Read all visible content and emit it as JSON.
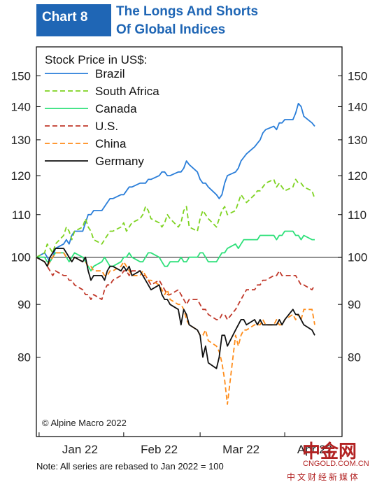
{
  "header": {
    "chart_number": "Chart 8",
    "title_line1": "The Longs And Shorts",
    "title_line2": "Of Global Indices"
  },
  "source_note": "© Alpine Macro 2022",
  "footnote": "Note: All series are rebased to Jan 2022 = 100",
  "watermark": {
    "brand_cn": "中金网",
    "brand_en": "CNGOLD.COM.CN",
    "tagline_cn": "中文财经新媒体"
  },
  "colors": {
    "brand_blue": "#1f66b5",
    "watermark_red": "#b22222"
  },
  "chart_data": {
    "type": "line",
    "title": "The Longs And Shorts Of Global Indices",
    "ylabel": "Stock Price in US$:",
    "y_scale": "log",
    "ylim": [
      67,
      160
    ],
    "y_ticks": [
      80,
      90,
      100,
      110,
      120,
      130,
      140,
      150
    ],
    "y_tick_labels": [
      "80",
      "90",
      "100",
      "110",
      "120",
      "130",
      "140",
      "150"
    ],
    "x_tick_labels": [
      "Jan 22",
      "Feb 22",
      "Mar 22",
      "Apr 22"
    ],
    "x_tick_dates": [
      "2022-01-01",
      "2022-02-01",
      "2022-03-01",
      "2022-04-01"
    ],
    "x_range": [
      "2021-12-31",
      "2022-04-22"
    ],
    "grid": false,
    "reference_line": 100,
    "legend_placement": "top-left",
    "x": [
      "2021-12-31",
      "2022-01-03",
      "2022-01-04",
      "2022-01-05",
      "2022-01-06",
      "2022-01-07",
      "2022-01-10",
      "2022-01-11",
      "2022-01-12",
      "2022-01-13",
      "2022-01-14",
      "2022-01-17",
      "2022-01-18",
      "2022-01-19",
      "2022-01-20",
      "2022-01-21",
      "2022-01-24",
      "2022-01-25",
      "2022-01-26",
      "2022-01-27",
      "2022-01-28",
      "2022-01-31",
      "2022-02-01",
      "2022-02-02",
      "2022-02-03",
      "2022-02-04",
      "2022-02-07",
      "2022-02-08",
      "2022-02-09",
      "2022-02-10",
      "2022-02-11",
      "2022-02-14",
      "2022-02-15",
      "2022-02-16",
      "2022-02-17",
      "2022-02-18",
      "2022-02-21",
      "2022-02-22",
      "2022-02-23",
      "2022-02-24",
      "2022-02-25",
      "2022-02-28",
      "2022-03-01",
      "2022-03-02",
      "2022-03-03",
      "2022-03-04",
      "2022-03-07",
      "2022-03-08",
      "2022-03-09",
      "2022-03-10",
      "2022-03-11",
      "2022-03-14",
      "2022-03-15",
      "2022-03-16",
      "2022-03-17",
      "2022-03-18",
      "2022-03-21",
      "2022-03-22",
      "2022-03-23",
      "2022-03-24",
      "2022-03-25",
      "2022-03-28",
      "2022-03-29",
      "2022-03-30",
      "2022-03-31",
      "2022-04-01",
      "2022-04-04",
      "2022-04-05",
      "2022-04-06",
      "2022-04-07",
      "2022-04-08",
      "2022-04-11",
      "2022-04-12"
    ],
    "series": [
      {
        "name": "Brazil",
        "color": "#2a7ed9",
        "dash": "solid",
        "values": [
          100,
          101,
          100,
          99,
          100,
          102,
          103,
          104,
          103,
          105,
          106,
          106,
          108,
          110,
          110,
          111,
          111,
          112,
          113,
          114,
          114,
          115,
          115,
          116,
          117,
          117,
          118,
          118,
          118,
          119,
          119,
          120,
          121,
          121,
          120,
          120,
          121,
          121,
          122,
          124,
          123,
          121,
          119,
          118,
          118,
          117,
          115,
          114,
          115,
          118,
          120,
          121,
          122,
          124,
          125,
          126,
          128,
          129,
          130,
          132,
          133,
          134,
          133,
          135,
          135,
          136,
          136,
          138,
          141,
          140,
          137,
          135,
          134
        ]
      },
      {
        "name": "South Africa",
        "color": "#7ed321",
        "dash": "dashed",
        "values": [
          100,
          101,
          103,
          102,
          101,
          103,
          105,
          107,
          106,
          104,
          106,
          107,
          109,
          107,
          106,
          104,
          103,
          104,
          105,
          106,
          106,
          107,
          108,
          106,
          107,
          108,
          109,
          110,
          112,
          111,
          109,
          108,
          107,
          108,
          110,
          109,
          107,
          108,
          111,
          112,
          107,
          106,
          109,
          111,
          110,
          109,
          107,
          109,
          111,
          112,
          110,
          111,
          113,
          115,
          114,
          113,
          115,
          116,
          116,
          117,
          118,
          119,
          117,
          118,
          117,
          116,
          117,
          119,
          118,
          118,
          117,
          116,
          114
        ]
      },
      {
        "name": "Canada",
        "color": "#2ee07a",
        "dash": "solid",
        "values": [
          100,
          100,
          99,
          99,
          100,
          101,
          101,
          100,
          99,
          100,
          101,
          100,
          99,
          98,
          97,
          98,
          99,
          100,
          99,
          98,
          98,
          99,
          100,
          100,
          101,
          100,
          99,
          99,
          100,
          101,
          101,
          100,
          99,
          98,
          98,
          99,
          99,
          100,
          99,
          99,
          100,
          100,
          101,
          101,
          100,
          99,
          99,
          100,
          101,
          101,
          102,
          103,
          102,
          103,
          104,
          104,
          104,
          104,
          105,
          105,
          105,
          105,
          104,
          105,
          105,
          106,
          106,
          105,
          105,
          104,
          105,
          104,
          104
        ]
      },
      {
        "name": "U.S.",
        "color": "#c0392b",
        "dash": "dashed",
        "values": [
          100,
          99,
          98,
          97,
          96,
          97,
          96,
          96,
          95,
          95,
          94,
          93,
          92,
          92,
          91,
          92,
          91,
          93,
          94,
          94,
          95,
          96,
          97,
          97,
          96,
          97,
          97,
          96,
          96,
          95,
          94,
          95,
          94,
          93,
          92,
          92,
          93,
          92,
          91,
          90,
          91,
          91,
          90,
          89,
          89,
          88,
          87,
          87,
          88,
          88,
          87,
          89,
          90,
          91,
          92,
          93,
          93,
          94,
          94,
          95,
          95,
          96,
          96,
          97,
          96,
          96,
          96,
          96,
          95,
          94,
          94,
          93,
          94
        ]
      },
      {
        "name": "China",
        "color": "#ff8c1a",
        "dash": "dashed",
        "values": [
          100,
          99,
          98,
          99,
          100,
          101,
          101,
          100,
          100,
          99,
          100,
          99,
          99,
          98,
          98,
          97,
          97,
          96,
          96,
          97,
          97,
          98,
          99,
          98,
          97,
          96,
          96,
          97,
          96,
          95,
          95,
          94,
          93,
          92,
          93,
          91,
          90,
          90,
          89,
          87,
          86,
          85,
          84,
          84,
          85,
          83,
          82,
          81,
          79,
          76,
          72,
          84,
          82,
          84,
          85,
          85,
          86,
          86,
          86,
          87,
          86,
          86,
          87,
          86,
          86,
          87,
          88,
          87,
          88,
          87,
          89,
          89,
          86
        ]
      },
      {
        "name": "Germany",
        "color": "#111111",
        "dash": "solid",
        "values": [
          100,
          99,
          98,
          100,
          101,
          102,
          102,
          101,
          100,
          99,
          100,
          99,
          100,
          97,
          95,
          96,
          96,
          95,
          97,
          98,
          98,
          97,
          98,
          97,
          98,
          96,
          97,
          96,
          95,
          94,
          93,
          94,
          92,
          91,
          91,
          90,
          89,
          86,
          89,
          88,
          86,
          85,
          84,
          80,
          82,
          79,
          78,
          80,
          84,
          84,
          82,
          85,
          86,
          87,
          87,
          86,
          87,
          86,
          87,
          86,
          86,
          86,
          86,
          87,
          86,
          87,
          89,
          88,
          88,
          87,
          86,
          85,
          84
        ]
      }
    ]
  }
}
